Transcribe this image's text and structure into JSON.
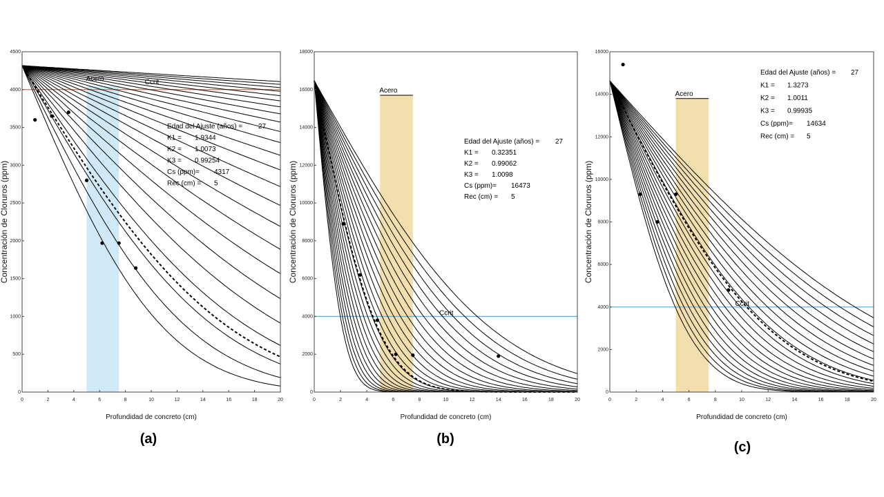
{
  "chart_data": [
    {
      "type": "line",
      "panel_label": "(a)",
      "xlabel": "Profundidad de concreto (cm)",
      "ylabel": "Concentración de Cloruros (ppm)",
      "xlim": [
        0,
        20
      ],
      "ylim": [
        0,
        4500
      ],
      "xticks": [
        "0",
        "2",
        "4",
        "6",
        "8",
        "10",
        "12",
        "14",
        "16",
        "18",
        "20"
      ],
      "yticks": [
        "0",
        "500",
        "1000",
        "1500",
        "2000",
        "2500",
        "3000",
        "3500",
        "4000",
        "4500"
      ],
      "ccrit": {
        "label": "Ccrit",
        "value": 4000,
        "color": "#c8745a"
      },
      "acero": {
        "label": "Acero",
        "from": 5,
        "to": 7.5,
        "color": "#cfe9f7"
      },
      "params": [
        {
          "label": "Edad del Ajuste (años) =",
          "value": "27"
        },
        {
          "label": "K1 =",
          "value": "1.9344"
        },
        {
          "label": "K2 =",
          "value": "1.0073"
        },
        {
          "label": "K3 =",
          "value": "0.99254"
        },
        {
          "label": "Cs (ppm)=",
          "value": "4317"
        },
        {
          "label": "Rec (cm) =",
          "value": "5"
        }
      ],
      "cs": 4317,
      "curve_scale_cm": {
        "min": 6,
        "max": 230,
        "count": 24
      },
      "fit_scale_cm": 8.8,
      "points": [
        [
          1,
          3600
        ],
        [
          2.3,
          3650
        ],
        [
          3.6,
          3700
        ],
        [
          5,
          2800
        ],
        [
          6.2,
          1970
        ],
        [
          7.5,
          1970
        ],
        [
          8.8,
          1640
        ]
      ]
    },
    {
      "type": "line",
      "panel_label": "(b)",
      "xlabel": "Profundidad de concreto (cm)",
      "ylabel": "Concentración de Cloruros (ppm)",
      "xlim": [
        0,
        20
      ],
      "ylim": [
        0,
        18000
      ],
      "xticks": [
        "0",
        "2",
        "4",
        "6",
        "8",
        "10",
        "12",
        "14",
        "16",
        "18",
        "20"
      ],
      "yticks": [
        "0",
        "2000",
        "4000",
        "6000",
        "8000",
        "10000",
        "12000",
        "14000",
        "16000",
        "18000"
      ],
      "ccrit": {
        "label": "Ccrit",
        "value": 4000,
        "color": "#5ab4e0"
      },
      "acero": {
        "label": "Acero",
        "from": 5,
        "to": 7.5,
        "top": 15700,
        "color": "#f3dfae"
      },
      "params": [
        {
          "label": "Edad del Ajuste (años) =",
          "value": "27"
        },
        {
          "label": "K1 =",
          "value": "0.32351"
        },
        {
          "label": "K2 =",
          "value": "0.99062"
        },
        {
          "label": "K3 =",
          "value": "1.0098"
        },
        {
          "label": "Cs (ppm)=",
          "value": "16473"
        },
        {
          "label": "Rec (cm) =",
          "value": "5"
        }
      ],
      "cs": 16473,
      "curve_scale_cm": {
        "min": 1.2,
        "max": 7.5,
        "count": 24
      },
      "fit_scale_cm": 2.7,
      "points": [
        [
          2.2,
          8900
        ],
        [
          3.5,
          6200
        ],
        [
          4.8,
          3800
        ],
        [
          6.2,
          2000
        ],
        [
          7.5,
          1950
        ],
        [
          14,
          1900
        ]
      ]
    },
    {
      "type": "line",
      "panel_label": "(c)",
      "xlabel": "Profundidad de concreto (cm)",
      "ylabel": "Concentración de Cloruros (ppm)",
      "xlim": [
        0,
        20
      ],
      "ylim": [
        0,
        16000
      ],
      "xticks": [
        "0",
        "2",
        "4",
        "6",
        "8",
        "10",
        "12",
        "14",
        "16",
        "18",
        "20"
      ],
      "yticks": [
        "0",
        "2000",
        "4000",
        "6000",
        "8000",
        "10000",
        "12000",
        "14000",
        "16000"
      ],
      "ccrit": {
        "label": "Ccrit",
        "value": 4000,
        "color": "#5ab4e0"
      },
      "acero": {
        "label": "Acero",
        "from": 5,
        "to": 7.5,
        "top": 13800,
        "color": "#f3dfae"
      },
      "params": [
        {
          "label": "Edad del Ajuste (años) =",
          "value": "27"
        },
        {
          "label": "K1 =",
          "value": "1.3273"
        },
        {
          "label": "K2 =",
          "value": "1.0011"
        },
        {
          "label": "K3 =",
          "value": "0.99935"
        },
        {
          "label": "Cs (ppm)=",
          "value": "14634"
        },
        {
          "label": "Rec (cm) =",
          "value": "5"
        }
      ],
      "cs": 14634,
      "curve_scale_cm": {
        "min": 3.2,
        "max": 12,
        "count": 22
      },
      "fit_scale_cm": 6.7,
      "points": [
        [
          1,
          15400
        ],
        [
          2.3,
          9300
        ],
        [
          3.6,
          8000
        ],
        [
          5,
          9300
        ],
        [
          9,
          4800
        ]
      ]
    }
  ]
}
